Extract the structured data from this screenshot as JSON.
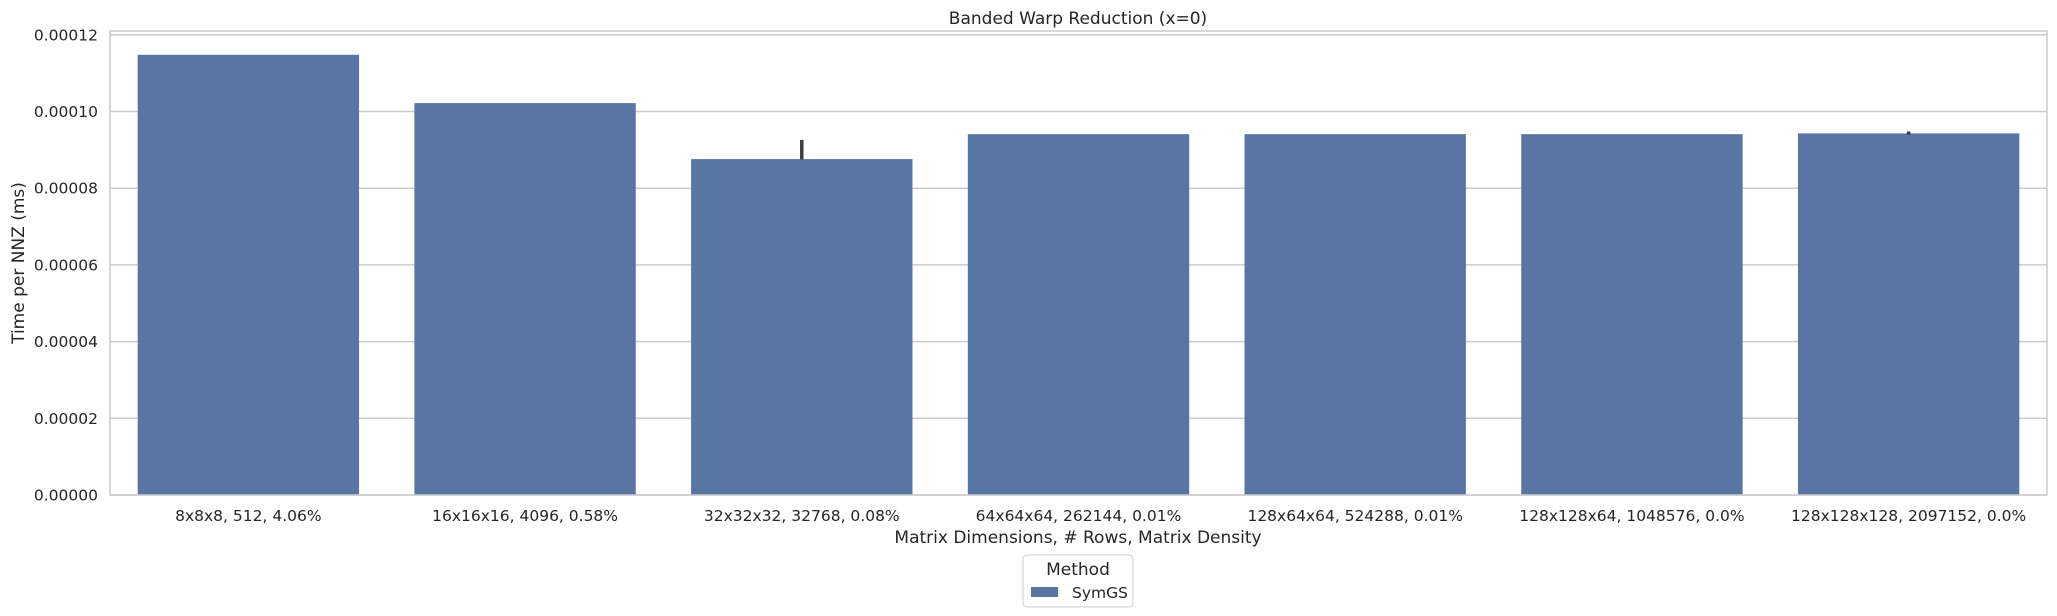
{
  "chart_data": {
    "type": "bar",
    "title": "Banded Warp Reduction (x=0)",
    "xlabel": "Matrix Dimensions, # Rows, Matrix Density",
    "ylabel": "Time per NNZ (ms)",
    "ylim": [
      0,
      0.000121
    ],
    "yticks": [
      "0.00000",
      "0.00002",
      "0.00004",
      "0.00006",
      "0.00008",
      "0.00010",
      "0.00012"
    ],
    "grid": true,
    "legend": {
      "title": "Method",
      "placement": "bottom-center"
    },
    "categories": [
      "8x8x8, 512, 4.06%",
      "16x16x16, 4096, 0.58%",
      "32x32x32, 32768, 0.08%",
      "64x64x64, 262144, 0.01%",
      "128x64x64, 524288, 0.01%",
      "128x128x64, 1048576, 0.0%",
      "128x128x128, 2097152, 0.0%"
    ],
    "series": [
      {
        "name": "SymGS",
        "color": "#5975a4",
        "values": [
          0.0001148,
          0.0001022,
          8.76e-05,
          9.41e-05,
          9.41e-05,
          9.41e-05,
          9.43e-05
        ],
        "error_low": [
          null,
          null,
          8.75e-05,
          null,
          null,
          null,
          9.4e-05
        ],
        "error_high": [
          null,
          null,
          9.26e-05,
          null,
          null,
          null,
          9.48e-05
        ]
      }
    ]
  }
}
